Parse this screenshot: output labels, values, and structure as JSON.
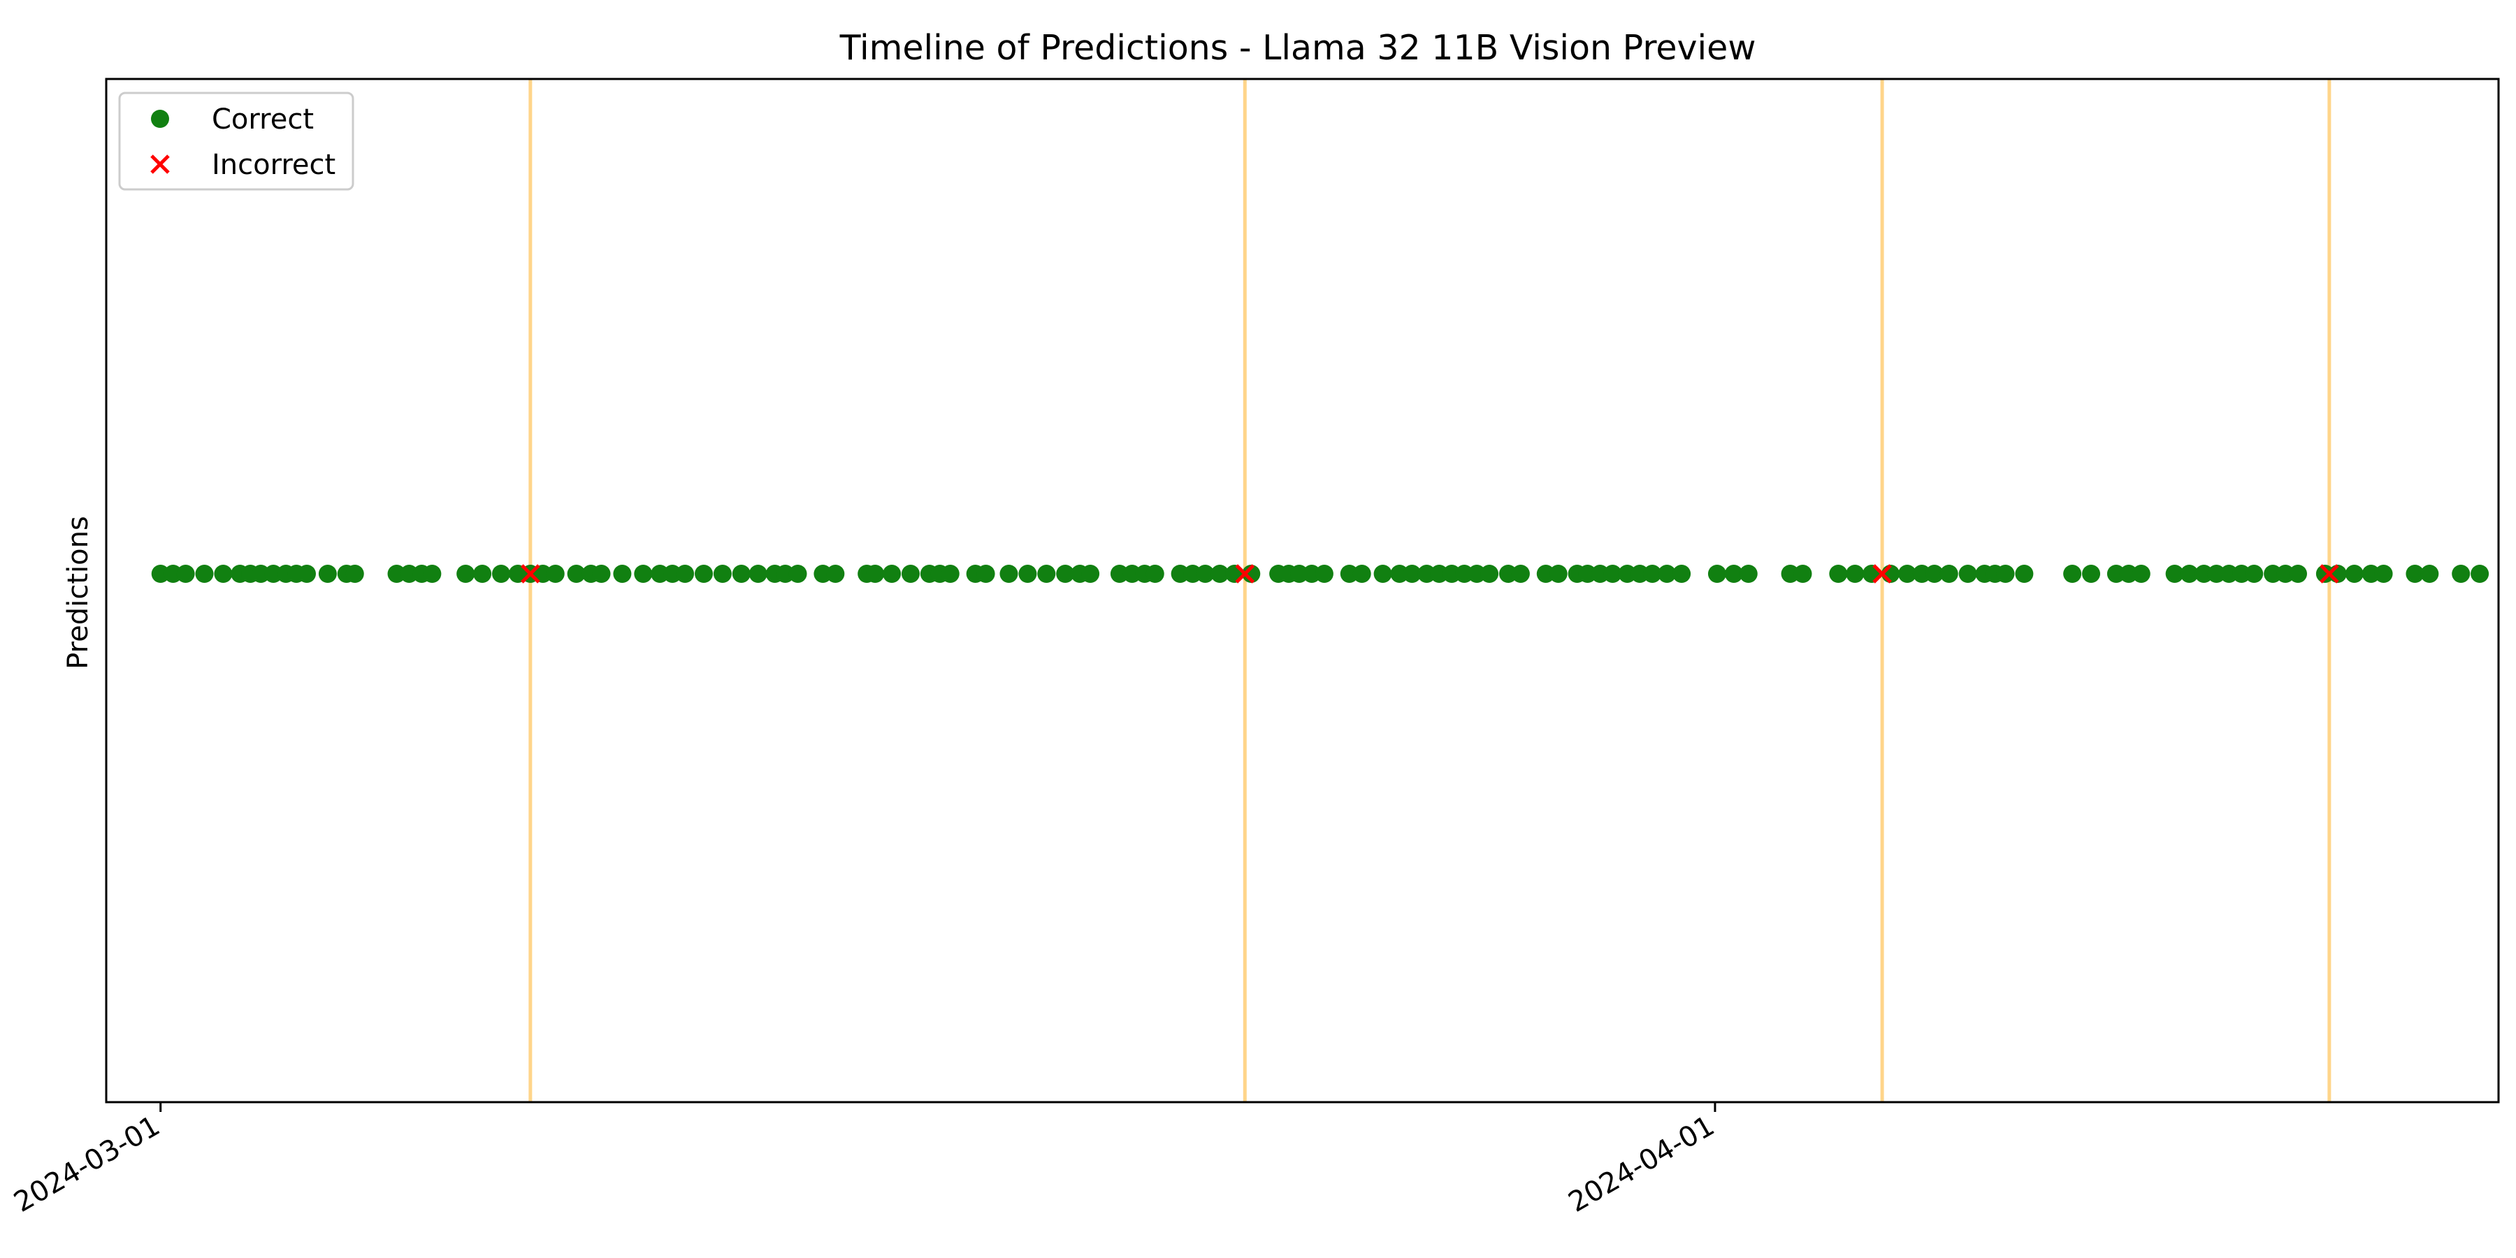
{
  "chart_data": {
    "type": "scatter",
    "title": "Timeline of Predictions - Llama 32 11B Vision Preview",
    "xlabel": "",
    "ylabel": "Predictions",
    "x_axis_type": "date",
    "xlim": [
      "2024-02-28T22:00",
      "2024-04-16T15:00"
    ],
    "x_ticks": [
      "2024-03-01",
      "2024-04-01"
    ],
    "grid": false,
    "legend_position": "top-left",
    "colors": {
      "correct": "#118011",
      "incorrect": "#ff0000",
      "highlight_line": "#ffd58a"
    },
    "series": [
      {
        "name": "Correct",
        "marker": "circle",
        "x": [
          "2024-03-01T00:00",
          "2024-03-01T06:00",
          "2024-03-01T12:00",
          "2024-03-01T21:00",
          "2024-03-02T06:00",
          "2024-03-02T14:00",
          "2024-03-02T19:00",
          "2024-03-03T00:00",
          "2024-03-03T06:00",
          "2024-03-03T12:00",
          "2024-03-03T17:00",
          "2024-03-03T22:00",
          "2024-03-04T08:00",
          "2024-03-04T17:00",
          "2024-03-04T21:00",
          "2024-03-05T17:00",
          "2024-03-05T23:00",
          "2024-03-06T05:00",
          "2024-03-06T10:00",
          "2024-03-07T02:00",
          "2024-03-07T10:00",
          "2024-03-07T19:00",
          "2024-03-08T03:00",
          "2024-03-08T09:00",
          "2024-03-08T15:00",
          "2024-03-08T21:00",
          "2024-03-09T07:00",
          "2024-03-09T14:00",
          "2024-03-09T19:00",
          "2024-03-10T05:00",
          "2024-03-10T15:00",
          "2024-03-10T23:00",
          "2024-03-11T05:00",
          "2024-03-11T11:00",
          "2024-03-11T20:00",
          "2024-03-12T05:00",
          "2024-03-12T14:00",
          "2024-03-12T22:00",
          "2024-03-13T06:00",
          "2024-03-13T11:00",
          "2024-03-13T17:00",
          "2024-03-14T05:00",
          "2024-03-14T11:00",
          "2024-03-15T02:00",
          "2024-03-15T06:00",
          "2024-03-15T14:00",
          "2024-03-15T23:00",
          "2024-03-16T08:00",
          "2024-03-16T13:00",
          "2024-03-16T18:00",
          "2024-03-17T06:00",
          "2024-03-17T11:00",
          "2024-03-17T22:00",
          "2024-03-18T07:00",
          "2024-03-18T16:00",
          "2024-03-19T01:00",
          "2024-03-19T08:00",
          "2024-03-19T13:00",
          "2024-03-20T03:00",
          "2024-03-20T09:00",
          "2024-03-20T15:00",
          "2024-03-20T20:00",
          "2024-03-21T08:00",
          "2024-03-21T14:00",
          "2024-03-21T20:00",
          "2024-03-22T03:00",
          "2024-03-22T10:00",
          "2024-03-22T18:00",
          "2024-03-23T07:00",
          "2024-03-23T12:00",
          "2024-03-23T17:00",
          "2024-03-23T23:00",
          "2024-03-24T05:00",
          "2024-03-24T17:00",
          "2024-03-24T23:00",
          "2024-03-25T09:00",
          "2024-03-25T17:00",
          "2024-03-25T23:00",
          "2024-03-26T06:00",
          "2024-03-26T12:00",
          "2024-03-26T18:00",
          "2024-03-27T00:00",
          "2024-03-27T06:00",
          "2024-03-27T12:00",
          "2024-03-27T21:00",
          "2024-03-28T03:00",
          "2024-03-28T15:00",
          "2024-03-28T21:00",
          "2024-03-29T06:00",
          "2024-03-29T11:00",
          "2024-03-29T17:00",
          "2024-03-29T23:00",
          "2024-03-30T06:00",
          "2024-03-30T12:00",
          "2024-03-30T18:00",
          "2024-03-31T01:00",
          "2024-03-31T08:00",
          "2024-04-01T01:00",
          "2024-04-01T09:00",
          "2024-04-01T16:00",
          "2024-04-02T12:00",
          "2024-04-02T18:00",
          "2024-04-03T11:00",
          "2024-04-03T19:00",
          "2024-04-04T03:00",
          "2024-04-04T12:00",
          "2024-04-04T20:00",
          "2024-04-05T03:00",
          "2024-04-05T09:00",
          "2024-04-05T16:00",
          "2024-04-06T01:00",
          "2024-04-06T09:00",
          "2024-04-06T14:00",
          "2024-04-06T19:00",
          "2024-04-07T04:00",
          "2024-04-08T03:00",
          "2024-04-08T12:00",
          "2024-04-09T00:00",
          "2024-04-09T06:00",
          "2024-04-09T12:00",
          "2024-04-10T04:00",
          "2024-04-10T11:00",
          "2024-04-10T18:00",
          "2024-04-11T00:00",
          "2024-04-11T06:00",
          "2024-04-11T12:00",
          "2024-04-11T18:00",
          "2024-04-12T03:00",
          "2024-04-12T09:00",
          "2024-04-12T15:00",
          "2024-04-13T04:00",
          "2024-04-13T10:00",
          "2024-04-13T18:00",
          "2024-04-14T02:00",
          "2024-04-14T08:00",
          "2024-04-14T23:00",
          "2024-04-15T06:00",
          "2024-04-15T21:00",
          "2024-04-16T06:00"
        ]
      },
      {
        "name": "Incorrect",
        "marker": "x",
        "x": [
          "2024-03-08T09:00",
          "2024-03-22T15:00",
          "2024-04-04T08:00",
          "2024-04-13T06:00"
        ]
      }
    ],
    "highlight_lines_x": [
      "2024-03-08T09:00",
      "2024-03-22T15:00",
      "2024-04-04T08:00",
      "2024-04-13T06:00"
    ]
  }
}
